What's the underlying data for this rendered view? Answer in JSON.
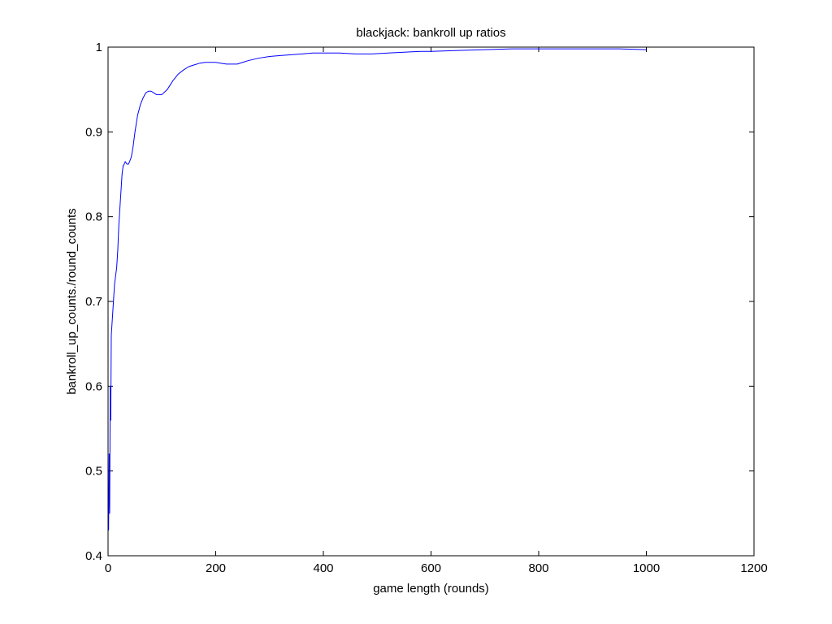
{
  "chart_data": {
    "type": "line",
    "title": "blackjack: bankroll up ratios",
    "xlabel": "game length (rounds)",
    "ylabel": "bankroll_up_counts./round_counts",
    "xlim": [
      0,
      1200
    ],
    "ylim": [
      0.4,
      1.0
    ],
    "xticks": [
      0,
      200,
      400,
      600,
      800,
      1000,
      1200
    ],
    "yticks": [
      0.4,
      0.5,
      0.6,
      0.7,
      0.8,
      0.9,
      1.0
    ],
    "xtick_labels": [
      "0",
      "200",
      "400",
      "600",
      "800",
      "1000",
      "1200"
    ],
    "ytick_labels": [
      "0.4",
      "0.5",
      "0.6",
      "0.7",
      "0.8",
      "0.9",
      "1"
    ],
    "grid": false,
    "series": [
      {
        "color": "#0000ff",
        "x": [
          1,
          2,
          3,
          4,
          5,
          6,
          8,
          10,
          12,
          14,
          16,
          18,
          20,
          22,
          24,
          26,
          28,
          30,
          32,
          35,
          38,
          40,
          43,
          46,
          50,
          55,
          60,
          65,
          70,
          75,
          80,
          85,
          90,
          95,
          100,
          105,
          110,
          115,
          120,
          130,
          140,
          150,
          160,
          170,
          180,
          190,
          200,
          210,
          220,
          230,
          240,
          250,
          260,
          280,
          300,
          320,
          340,
          360,
          380,
          400,
          430,
          460,
          490,
          520,
          550,
          580,
          600,
          650,
          700,
          750,
          800,
          850,
          900,
          950,
          1000
        ],
        "y": [
          0.43,
          0.52,
          0.45,
          0.6,
          0.56,
          0.66,
          0.68,
          0.7,
          0.72,
          0.73,
          0.74,
          0.76,
          0.79,
          0.81,
          0.83,
          0.85,
          0.86,
          0.862,
          0.865,
          0.862,
          0.862,
          0.865,
          0.87,
          0.88,
          0.9,
          0.92,
          0.932,
          0.94,
          0.946,
          0.948,
          0.948,
          0.946,
          0.944,
          0.944,
          0.944,
          0.947,
          0.95,
          0.955,
          0.96,
          0.968,
          0.973,
          0.977,
          0.979,
          0.981,
          0.982,
          0.982,
          0.982,
          0.981,
          0.98,
          0.98,
          0.98,
          0.982,
          0.984,
          0.987,
          0.989,
          0.99,
          0.991,
          0.992,
          0.993,
          0.993,
          0.993,
          0.992,
          0.992,
          0.993,
          0.994,
          0.995,
          0.995,
          0.996,
          0.997,
          0.998,
          0.998,
          0.998,
          0.998,
          0.998,
          0.997
        ]
      }
    ]
  }
}
